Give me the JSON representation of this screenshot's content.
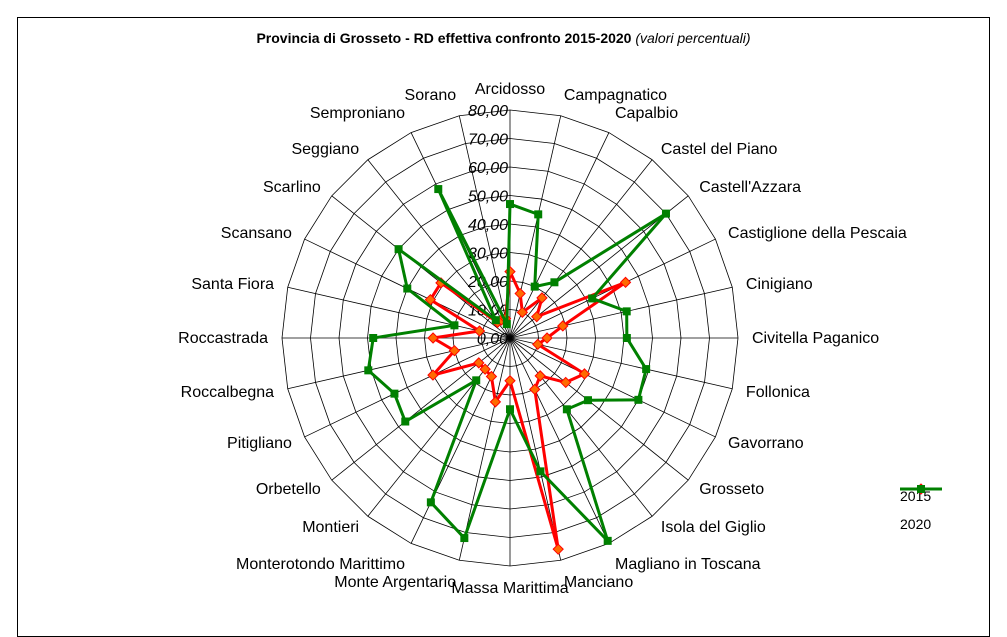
{
  "chart_data": {
    "type": "radar",
    "title": "Provincia di Grosseto  -  RD effettiva confronto 2015-2020",
    "subtitle": "(valori percentuali)",
    "categories": [
      "Arcidosso",
      "Campagnatico",
      "Capalbio",
      "Castel del Piano",
      "Castell'Azzara",
      "Castiglione della Pescaia",
      "Cinigiano",
      "Civitella Paganico",
      "Follonica",
      "Gavorrano",
      "Grosseto",
      "Isola del Giglio",
      "Magliano in Toscana",
      "Manciano",
      "Massa Marittima",
      "Monte Argentario",
      "Monterotondo Marittimo",
      "Montieri",
      "Orbetello",
      "Pitigliano",
      "Roccalbegna",
      "Roccastrada",
      "Santa Fiora",
      "Scansano",
      "Scarlino",
      "Seggiano",
      "Semproniano",
      "Sorano"
    ],
    "rlim": [
      0,
      80
    ],
    "ticks": [
      "0,00",
      "10,00",
      "20,00",
      "30,00",
      "40,00",
      "50,00",
      "60,00",
      "70,00",
      "80,00"
    ],
    "grid": true,
    "legend_position": "right",
    "series": [
      {
        "name": "2015",
        "color": "#ff0000",
        "marker": "diamond",
        "values": [
          23.3,
          16,
          10,
          18,
          12,
          45,
          19,
          13,
          10,
          29,
          25,
          17,
          20,
          76,
          15,
          23,
          15,
          14,
          14,
          30,
          20,
          27,
          11,
          31,
          31,
          7,
          7,
          7
        ]
      },
      {
        "name": "2020",
        "color": "#008000",
        "marker": "square",
        "values": [
          47,
          44.5,
          20,
          25,
          70,
          32,
          42,
          41,
          49,
          50,
          35,
          32,
          79,
          48,
          25,
          72,
          64,
          19,
          47,
          45,
          51,
          48,
          20,
          40,
          50,
          8,
          58,
          5
        ]
      }
    ]
  }
}
